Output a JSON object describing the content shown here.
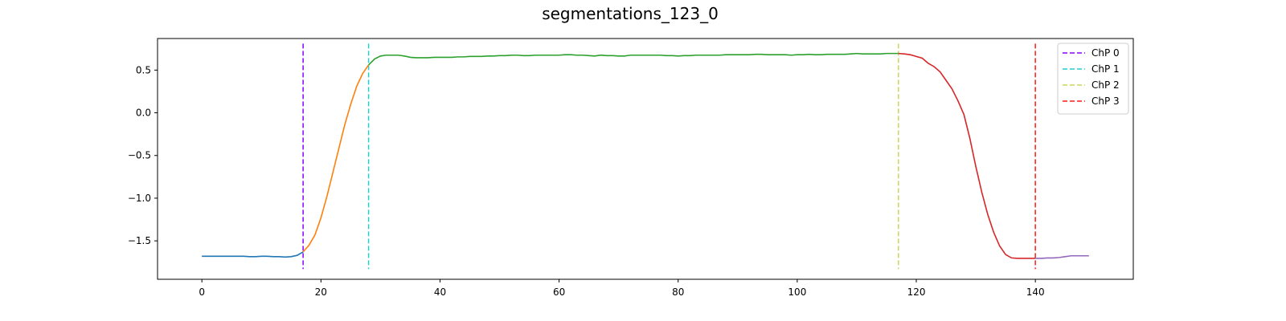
{
  "chart_data": {
    "type": "line",
    "title": "segmentations_123_0",
    "xlabel": "",
    "ylabel": "",
    "xlim": [
      -7.45,
      156.45
    ],
    "ylim": [
      -1.95,
      0.87
    ],
    "x_ticks": [
      0,
      20,
      40,
      60,
      80,
      100,
      120,
      140
    ],
    "y_ticks": [
      -1.5,
      -1.0,
      -0.5,
      0.0,
      0.5
    ],
    "x_tick_labels": [
      "0",
      "20",
      "40",
      "60",
      "80",
      "100",
      "120",
      "140"
    ],
    "y_tick_labels": [
      "−1.5",
      "−1.0",
      "−0.5",
      "0.0",
      "0.5"
    ],
    "grid": false,
    "legend_position": "top-right",
    "segments": [
      {
        "color": "#1f77b4",
        "start": 0,
        "end": 17
      },
      {
        "color": "#ff7f0e",
        "start": 17,
        "end": 28
      },
      {
        "color": "#2ca02c",
        "start": 28,
        "end": 117
      },
      {
        "color": "#d62728",
        "start": 117,
        "end": 140
      },
      {
        "color": "#9467bd",
        "start": 140,
        "end": 149
      }
    ],
    "y": [
      -1.68,
      -1.68,
      -1.68,
      -1.68,
      -1.68,
      -1.68,
      -1.68,
      -1.68,
      -1.685,
      -1.685,
      -1.68,
      -1.68,
      -1.685,
      -1.685,
      -1.69,
      -1.685,
      -1.67,
      -1.63,
      -1.55,
      -1.43,
      -1.23,
      -0.98,
      -0.7,
      -0.42,
      -0.14,
      0.1,
      0.31,
      0.46,
      0.56,
      0.63,
      0.665,
      0.675,
      0.675,
      0.675,
      0.665,
      0.65,
      0.645,
      0.645,
      0.645,
      0.65,
      0.65,
      0.65,
      0.65,
      0.655,
      0.655,
      0.66,
      0.66,
      0.66,
      0.665,
      0.665,
      0.67,
      0.67,
      0.675,
      0.675,
      0.67,
      0.67,
      0.675,
      0.675,
      0.675,
      0.675,
      0.675,
      0.68,
      0.68,
      0.675,
      0.675,
      0.67,
      0.665,
      0.675,
      0.67,
      0.67,
      0.665,
      0.665,
      0.675,
      0.675,
      0.675,
      0.675,
      0.675,
      0.675,
      0.67,
      0.67,
      0.665,
      0.67,
      0.67,
      0.675,
      0.675,
      0.675,
      0.675,
      0.675,
      0.68,
      0.68,
      0.68,
      0.68,
      0.68,
      0.685,
      0.685,
      0.68,
      0.68,
      0.68,
      0.68,
      0.675,
      0.68,
      0.68,
      0.685,
      0.68,
      0.68,
      0.685,
      0.685,
      0.685,
      0.685,
      0.69,
      0.695,
      0.69,
      0.69,
      0.69,
      0.69,
      0.695,
      0.695,
      0.695,
      0.69,
      0.68,
      0.66,
      0.64,
      0.58,
      0.54,
      0.48,
      0.38,
      0.28,
      0.14,
      -0.02,
      -0.3,
      -0.63,
      -0.93,
      -1.19,
      -1.4,
      -1.56,
      -1.66,
      -1.7,
      -1.705,
      -1.705,
      -1.705,
      -1.705,
      -1.705,
      -1.7,
      -1.7,
      -1.695,
      -1.685,
      -1.675,
      -1.675,
      -1.675,
      -1.675
    ],
    "change_points": [
      {
        "name": "ChP 0",
        "x": 17,
        "color": "#8b00ff"
      },
      {
        "name": "ChP 1",
        "x": 28,
        "color": "#20cfcf"
      },
      {
        "name": "ChP 2",
        "x": 117,
        "color": "#cbd55e"
      },
      {
        "name": "ChP 3",
        "x": 140,
        "color": "#ff1a1a"
      }
    ],
    "change_point_span": [
      -1.83,
      0.81
    ]
  }
}
